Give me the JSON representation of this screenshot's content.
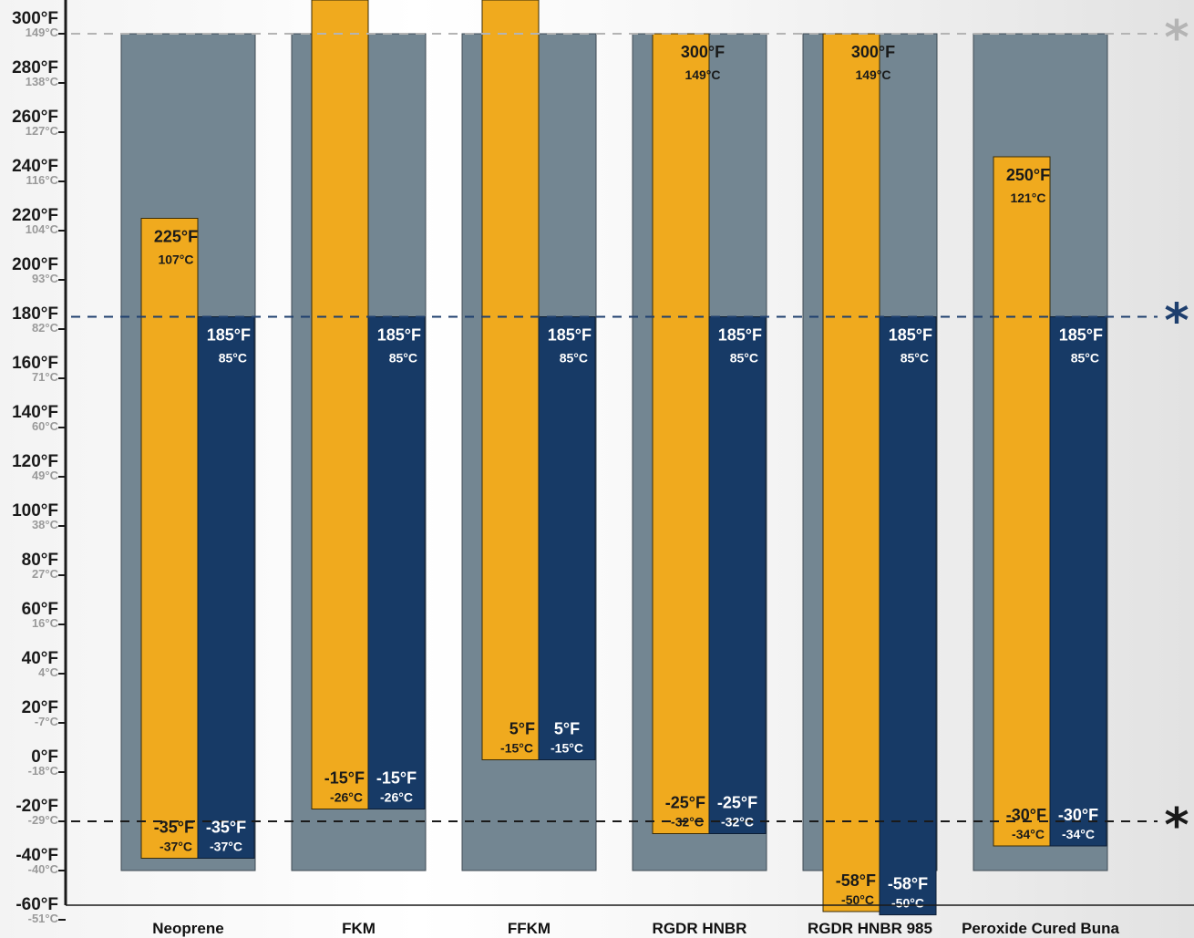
{
  "chart_data": {
    "type": "bar",
    "title": "",
    "xlabel": "",
    "ylabel": "",
    "ylim": [
      -60,
      300
    ],
    "y_unit": "°F",
    "grid": false,
    "ticks": [
      {
        "f": "300°F",
        "c": "149°C",
        "v": 300
      },
      {
        "f": "280°F",
        "c": "138°C",
        "v": 280
      },
      {
        "f": "260°F",
        "c": "127°C",
        "v": 260
      },
      {
        "f": "240°F",
        "c": "116°C",
        "v": 240
      },
      {
        "f": "220°F",
        "c": "104°C",
        "v": 220
      },
      {
        "f": "200°F",
        "c": "93°C",
        "v": 200
      },
      {
        "f": "180°F",
        "c": "82°C",
        "v": 180
      },
      {
        "f": "160°F",
        "c": "71°C",
        "v": 160
      },
      {
        "f": "140°F",
        "c": "60°C",
        "v": 140
      },
      {
        "f": "120°F",
        "c": "49°C",
        "v": 120
      },
      {
        "f": "100°F",
        "c": "38°C",
        "v": 100
      },
      {
        "f": "80°F",
        "c": "27°C",
        "v": 80
      },
      {
        "f": "60°F",
        "c": "16°C",
        "v": 60
      },
      {
        "f": "40°F",
        "c": "4°C",
        "v": 40
      },
      {
        "f": "20°F",
        "c": "-7°C",
        "v": 20
      },
      {
        "f": "0°F",
        "c": "-18°C",
        "v": 0
      },
      {
        "f": "-20°F",
        "c": "-29°C",
        "v": -20
      },
      {
        "f": "-40°F",
        "c": "-40°C",
        "v": -40
      },
      {
        "f": "-60°F",
        "c": "-51°C",
        "v": -60
      }
    ],
    "reference_lines": [
      {
        "value": 300,
        "color": "#b4b4b4",
        "marker": "*"
      },
      {
        "value": 185,
        "color": "#1e3f6e",
        "marker": "*"
      },
      {
        "value": -20,
        "color": "#1a1a1a",
        "marker": "*"
      }
    ],
    "colors": {
      "background_range": "#738692",
      "orange": "#f0aa1e",
      "navy": "#173a66"
    },
    "categories": [
      {
        "name": "Neoprene",
        "range": [
          -40,
          300
        ],
        "orange": {
          "low": -35,
          "high": 225,
          "high_f": "225°F",
          "high_c": "107°C",
          "low_f": "-35°F",
          "low_c": "-37°C"
        },
        "navy": {
          "low": -35,
          "high": 185,
          "high_f": "185°F",
          "high_c": "85°C",
          "low_f": "-35°F",
          "low_c": "-37°C"
        }
      },
      {
        "name": "FKM",
        "range": [
          -40,
          300
        ],
        "orange": {
          "low": -15,
          "high": 320,
          "high_f": "",
          "high_c": "",
          "low_f": "-15°F",
          "low_c": "-26°C"
        },
        "navy": {
          "low": -15,
          "high": 185,
          "high_f": "185°F",
          "high_c": "85°C",
          "low_f": "-15°F",
          "low_c": "-26°C"
        }
      },
      {
        "name": "FFKM",
        "range": [
          -40,
          300
        ],
        "orange": {
          "low": 5,
          "high": 320,
          "high_f": "",
          "high_c": "",
          "low_f": "5°F",
          "low_c": "-15°C"
        },
        "navy": {
          "low": 5,
          "high": 185,
          "high_f": "185°F",
          "high_c": "85°C",
          "low_f": "5°F",
          "low_c": "-15°C"
        }
      },
      {
        "name": "RGDR HNBR",
        "range": [
          -40,
          300
        ],
        "orange": {
          "low": -25,
          "high": 300,
          "high_f": "300°F",
          "high_c": "149°C",
          "low_f": "-25°F",
          "low_c": "-32°C"
        },
        "navy": {
          "low": -25,
          "high": 185,
          "high_f": "185°F",
          "high_c": "85°C",
          "low_f": "-25°F",
          "low_c": "-32°C"
        }
      },
      {
        "name": "RGDR HNBR 985",
        "range": [
          -40,
          300
        ],
        "orange": {
          "low": -58,
          "high": 300,
          "high_f": "300°F",
          "high_c": "149°C",
          "low_f": "-58°F",
          "low_c": "-50°C"
        },
        "navy": {
          "low": -58,
          "high": 185,
          "high_f": "185°F",
          "high_c": "85°C",
          "low_f": "-58°F",
          "low_c": "-50°C"
        }
      },
      {
        "name": "Peroxide Cured Buna",
        "range": [
          -40,
          300
        ],
        "orange": {
          "low": -30,
          "high": 250,
          "high_f": "250°F",
          "high_c": "121°C",
          "low_f": "-30°F",
          "low_c": "-34°C"
        },
        "navy": {
          "low": -30,
          "high": 185,
          "high_f": "185°F",
          "high_c": "85°C",
          "low_f": "-30°F",
          "low_c": "-34°C"
        }
      }
    ]
  }
}
